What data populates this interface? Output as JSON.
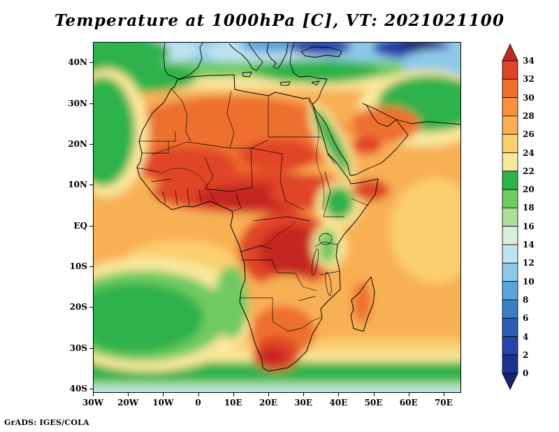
{
  "title": "Temperature at 1000hPa [C], VT: 2021021100",
  "credit": "GrADS: IGES/COLA",
  "chart_data": {
    "type": "heatmap",
    "title": "Temperature at 1000hPa [C], VT: 2021021100",
    "variable": "Temperature",
    "level": "1000hPa",
    "units": "C",
    "valid_time": "2021021100",
    "projection": "latlon",
    "region": "Africa / Europe / Arabia (30W-75E, 41S-45N)",
    "contour_interval_c": 2,
    "grid": false,
    "x_axis": {
      "label_type": "longitude",
      "range_deg": [
        -30,
        75
      ],
      "ticks": [
        {
          "label": "30W",
          "deg": -30
        },
        {
          "label": "20W",
          "deg": -20
        },
        {
          "label": "10W",
          "deg": -10
        },
        {
          "label": "0",
          "deg": 0
        },
        {
          "label": "10E",
          "deg": 10
        },
        {
          "label": "20E",
          "deg": 20
        },
        {
          "label": "30E",
          "deg": 30
        },
        {
          "label": "40E",
          "deg": 40
        },
        {
          "label": "50E",
          "deg": 50
        },
        {
          "label": "60E",
          "deg": 60
        },
        {
          "label": "70E",
          "deg": 70
        }
      ]
    },
    "y_axis": {
      "label_type": "latitude",
      "range_deg": [
        -41,
        45
      ],
      "ticks": [
        {
          "label": "40N",
          "deg": 40
        },
        {
          "label": "30N",
          "deg": 30
        },
        {
          "label": "20N",
          "deg": 20
        },
        {
          "label": "10N",
          "deg": 10
        },
        {
          "label": "EQ",
          "deg": 0
        },
        {
          "label": "10S",
          "deg": -10
        },
        {
          "label": "20S",
          "deg": -20
        },
        {
          "label": "30S",
          "deg": -30
        },
        {
          "label": "40S",
          "deg": -40
        }
      ]
    },
    "colorbar": {
      "position": "right",
      "labels": [
        34,
        32,
        30,
        28,
        26,
        24,
        22,
        20,
        18,
        16,
        14,
        12,
        10,
        8,
        6,
        4,
        2,
        0
      ],
      "colors_hot_to_cold": [
        "#c62821",
        "#e04428",
        "#ee6f2e",
        "#f5923c",
        "#f8b054",
        "#fbcf6e",
        "#f9e79b",
        "#2eb24b",
        "#6fca62",
        "#abdf9a",
        "#d8efdc",
        "#bfe3f0",
        "#8ec9e8",
        "#5ca5da",
        "#3a7fc4",
        "#2b5db5",
        "#2543a8",
        "#1d3190",
        "#15246f"
      ]
    },
    "field_summary": [
      {
        "region": "Sahel belt (6N-14N, 15W-35E)",
        "approx_temp_c": "32-34+"
      },
      {
        "region": "Congo Basin (4N-12S, 15E-30E)",
        "approx_temp_c": "32-34+"
      },
      {
        "region": "Sahara interior",
        "approx_temp_c": "28-32"
      },
      {
        "region": "Arabian Peninsula",
        "approx_temp_c": "28-32"
      },
      {
        "region": "Tropical Atlantic and Indian Ocean",
        "approx_temp_c": "26-28"
      },
      {
        "region": "NW African coastal upwelling (Canary current)",
        "approx_temp_c": "18-22"
      },
      {
        "region": "SE Atlantic off Namibia (Benguela current)",
        "approx_temp_c": "18-22"
      },
      {
        "region": "Mediterranean belt",
        "approx_temp_c": "18-24"
      },
      {
        "region": "Ethiopian and East African highlands",
        "approx_temp_c": "18-24"
      },
      {
        "region": "Red Sea stripe",
        "approx_temp_c": "20-24"
      },
      {
        "region": "Iran / Persian Gulf hinterland",
        "approx_temp_c": "18-22"
      },
      {
        "region": "South Africa interior hot spot (~30S, 20E-25E)",
        "approx_temp_c": "30-34"
      },
      {
        "region": "Southern Ocean band (35S-40S)",
        "approx_temp_c": "16-22"
      },
      {
        "region": "Europe (north edge of map)",
        "approx_temp_c": "6-14"
      },
      {
        "region": "Black Sea / NE corner",
        "approx_temp_c": "0-6"
      }
    ]
  }
}
